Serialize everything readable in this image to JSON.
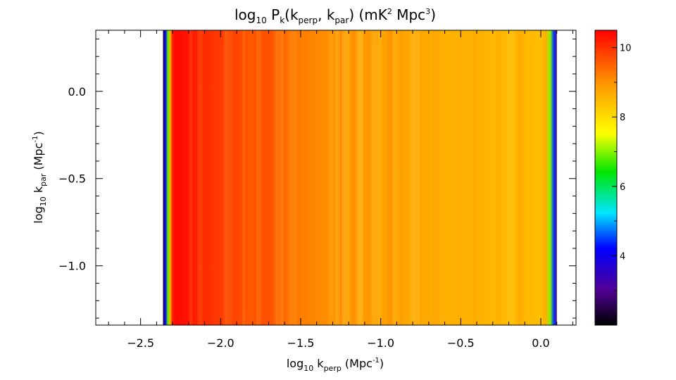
{
  "chart_data": {
    "type": "heatmap",
    "title": {
      "base": "log",
      "sub1": "10",
      "mid": " P",
      "sub2": "k",
      "tail": "(k",
      "sub3": "perp",
      "tail2": ", k",
      "sub4": "par",
      "tail3": ")  (mK",
      "sup1": "2",
      "tail4": " Mpc",
      "sup2": "3",
      "end": ")"
    },
    "xlabel": {
      "base": "log",
      "sub1": "10",
      "mid": " k",
      "sub2": "perp",
      "tail": " (Mpc",
      "sup": "-1",
      "end": ")"
    },
    "ylabel": {
      "base": "log",
      "sub1": "10",
      "mid": " k",
      "sub2": "par",
      "tail": " (Mpc",
      "sup": "-1",
      "end": ")"
    },
    "xlim": [
      -2.78,
      0.22
    ],
    "ylim": [
      -1.34,
      0.35
    ],
    "x_ticks": [
      -2.5,
      -2.0,
      -1.5,
      -1.0,
      -0.5,
      0.0
    ],
    "x_tick_labels": [
      "−2.5",
      "−2.0",
      "−1.5",
      "−1.0",
      "−0.5",
      "0.0"
    ],
    "y_ticks": [
      0.0,
      -0.5,
      -1.0
    ],
    "y_tick_labels": [
      "0.0",
      "−0.5",
      "−1.0"
    ],
    "data_extent_x": [
      -2.36,
      0.1
    ],
    "colorbar": {
      "range": [
        2.0,
        10.5
      ],
      "ticks": [
        4,
        6,
        8,
        10
      ],
      "tick_labels": [
        "4",
        "6",
        "8",
        "10"
      ],
      "colormap": "rainbow (black-purple-blue-cyan-green-yellow-orange-red)"
    },
    "profile_x": [
      -2.36,
      -2.345,
      -2.33,
      -2.315,
      -2.3,
      -2.28,
      -2.2,
      -2.1,
      -2.0,
      -1.9,
      -1.8,
      -1.7,
      -1.6,
      -1.5,
      -1.4,
      -1.3,
      -1.2,
      -1.1,
      -1.0,
      -0.9,
      -0.8,
      -0.7,
      -0.6,
      -0.5,
      -0.4,
      -0.3,
      -0.2,
      -0.1,
      0.0,
      0.03,
      0.06,
      0.08,
      0.1
    ],
    "profile_z": [
      2.5,
      4.2,
      6.8,
      8.6,
      10.2,
      10.4,
      10.3,
      10.1,
      9.9,
      9.8,
      9.6,
      9.7,
      9.4,
      9.2,
      9.1,
      9.0,
      8.9,
      8.9,
      8.8,
      8.8,
      8.7,
      8.7,
      8.6,
      8.6,
      8.6,
      8.5,
      8.5,
      8.5,
      8.4,
      8.6,
      7.0,
      4.5,
      3.0
    ]
  }
}
